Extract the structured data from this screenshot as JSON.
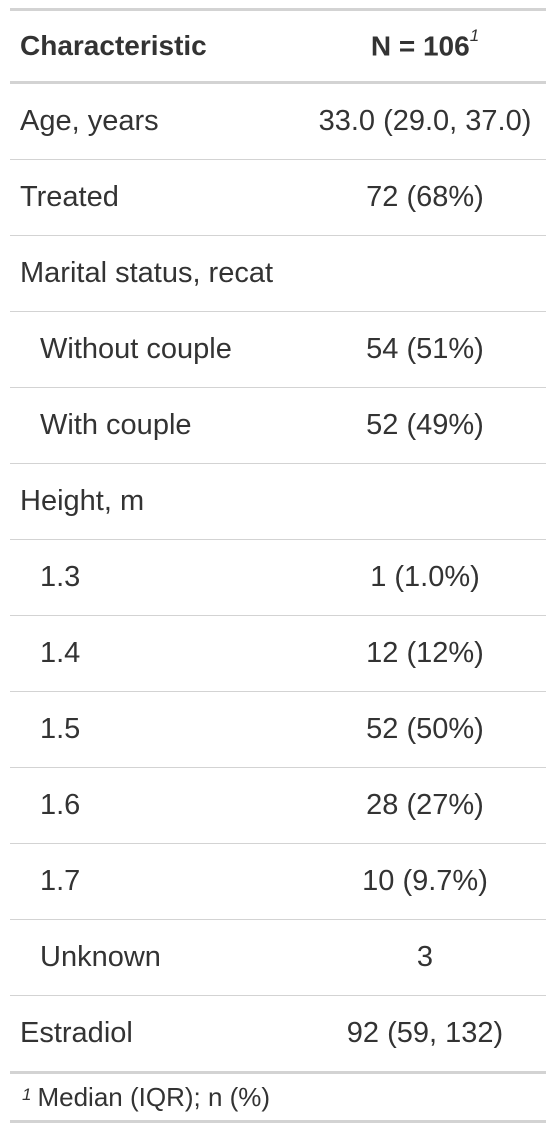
{
  "header": {
    "characteristic": "Characteristic",
    "n_label": "N = 106",
    "n_footnote_mark": "1"
  },
  "rows": [
    {
      "label": "Age, years",
      "value": "33.0 (29.0, 37.0)"
    },
    {
      "label": "Treated",
      "value": "72 (68%)"
    },
    {
      "label": "Marital status, recat",
      "value": ""
    },
    {
      "label": "Without couple",
      "value": "54 (51%)"
    },
    {
      "label": "With couple",
      "value": "52 (49%)"
    },
    {
      "label": "Height, m",
      "value": ""
    },
    {
      "label": "1.3",
      "value": "1 (1.0%)"
    },
    {
      "label": "1.4",
      "value": "12 (12%)"
    },
    {
      "label": "1.5",
      "value": "52 (50%)"
    },
    {
      "label": "1.6",
      "value": "28 (27%)"
    },
    {
      "label": "1.7",
      "value": "10 (9.7%)"
    },
    {
      "label": "Unknown",
      "value": "3"
    },
    {
      "label": "Estradiol",
      "value": "92 (59, 132)"
    }
  ],
  "footnote": {
    "mark": "1",
    "text": "Median (IQR); n (%)"
  }
}
